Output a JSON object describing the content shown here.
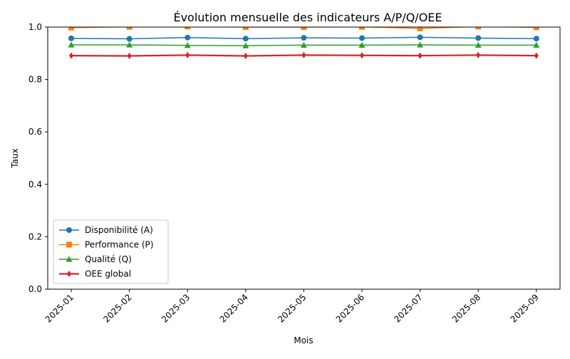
{
  "chart_data": {
    "type": "line",
    "title": "Évolution mensuelle des indicateurs A/P/Q/OEE",
    "xlabel": "Mois",
    "ylabel": "Taux",
    "ylim": [
      0.0,
      1.0
    ],
    "yticks": [
      "0.0",
      "0.2",
      "0.4",
      "0.6",
      "0.8",
      "1.0"
    ],
    "categories": [
      "2025-01",
      "2025-02",
      "2025-03",
      "2025-04",
      "2025-05",
      "2025-06",
      "2025-07",
      "2025-08",
      "2025-09"
    ],
    "legend_position": "lower-left",
    "grid": false,
    "series": [
      {
        "name": "Disponibilité (A)",
        "color": "#1f77b4",
        "marker": "circle",
        "values": [
          0.957,
          0.955,
          0.96,
          0.956,
          0.959,
          0.958,
          0.961,
          0.958,
          0.956
        ]
      },
      {
        "name": "Performance (P)",
        "color": "#ff7f0e",
        "marker": "square",
        "values": [
          0.998,
          1.001,
          1.002,
          1.0,
          1.0,
          1.001,
          0.995,
          1.002,
          0.999
        ]
      },
      {
        "name": "Qualité (Q)",
        "color": "#2ca02c",
        "marker": "triangle",
        "values": [
          0.932,
          0.932,
          0.93,
          0.929,
          0.931,
          0.931,
          0.932,
          0.931,
          0.931
        ]
      },
      {
        "name": "OEE global",
        "color": "#d62728",
        "marker": "diamond",
        "values": [
          0.891,
          0.89,
          0.893,
          0.89,
          0.893,
          0.892,
          0.891,
          0.893,
          0.891
        ]
      }
    ]
  }
}
